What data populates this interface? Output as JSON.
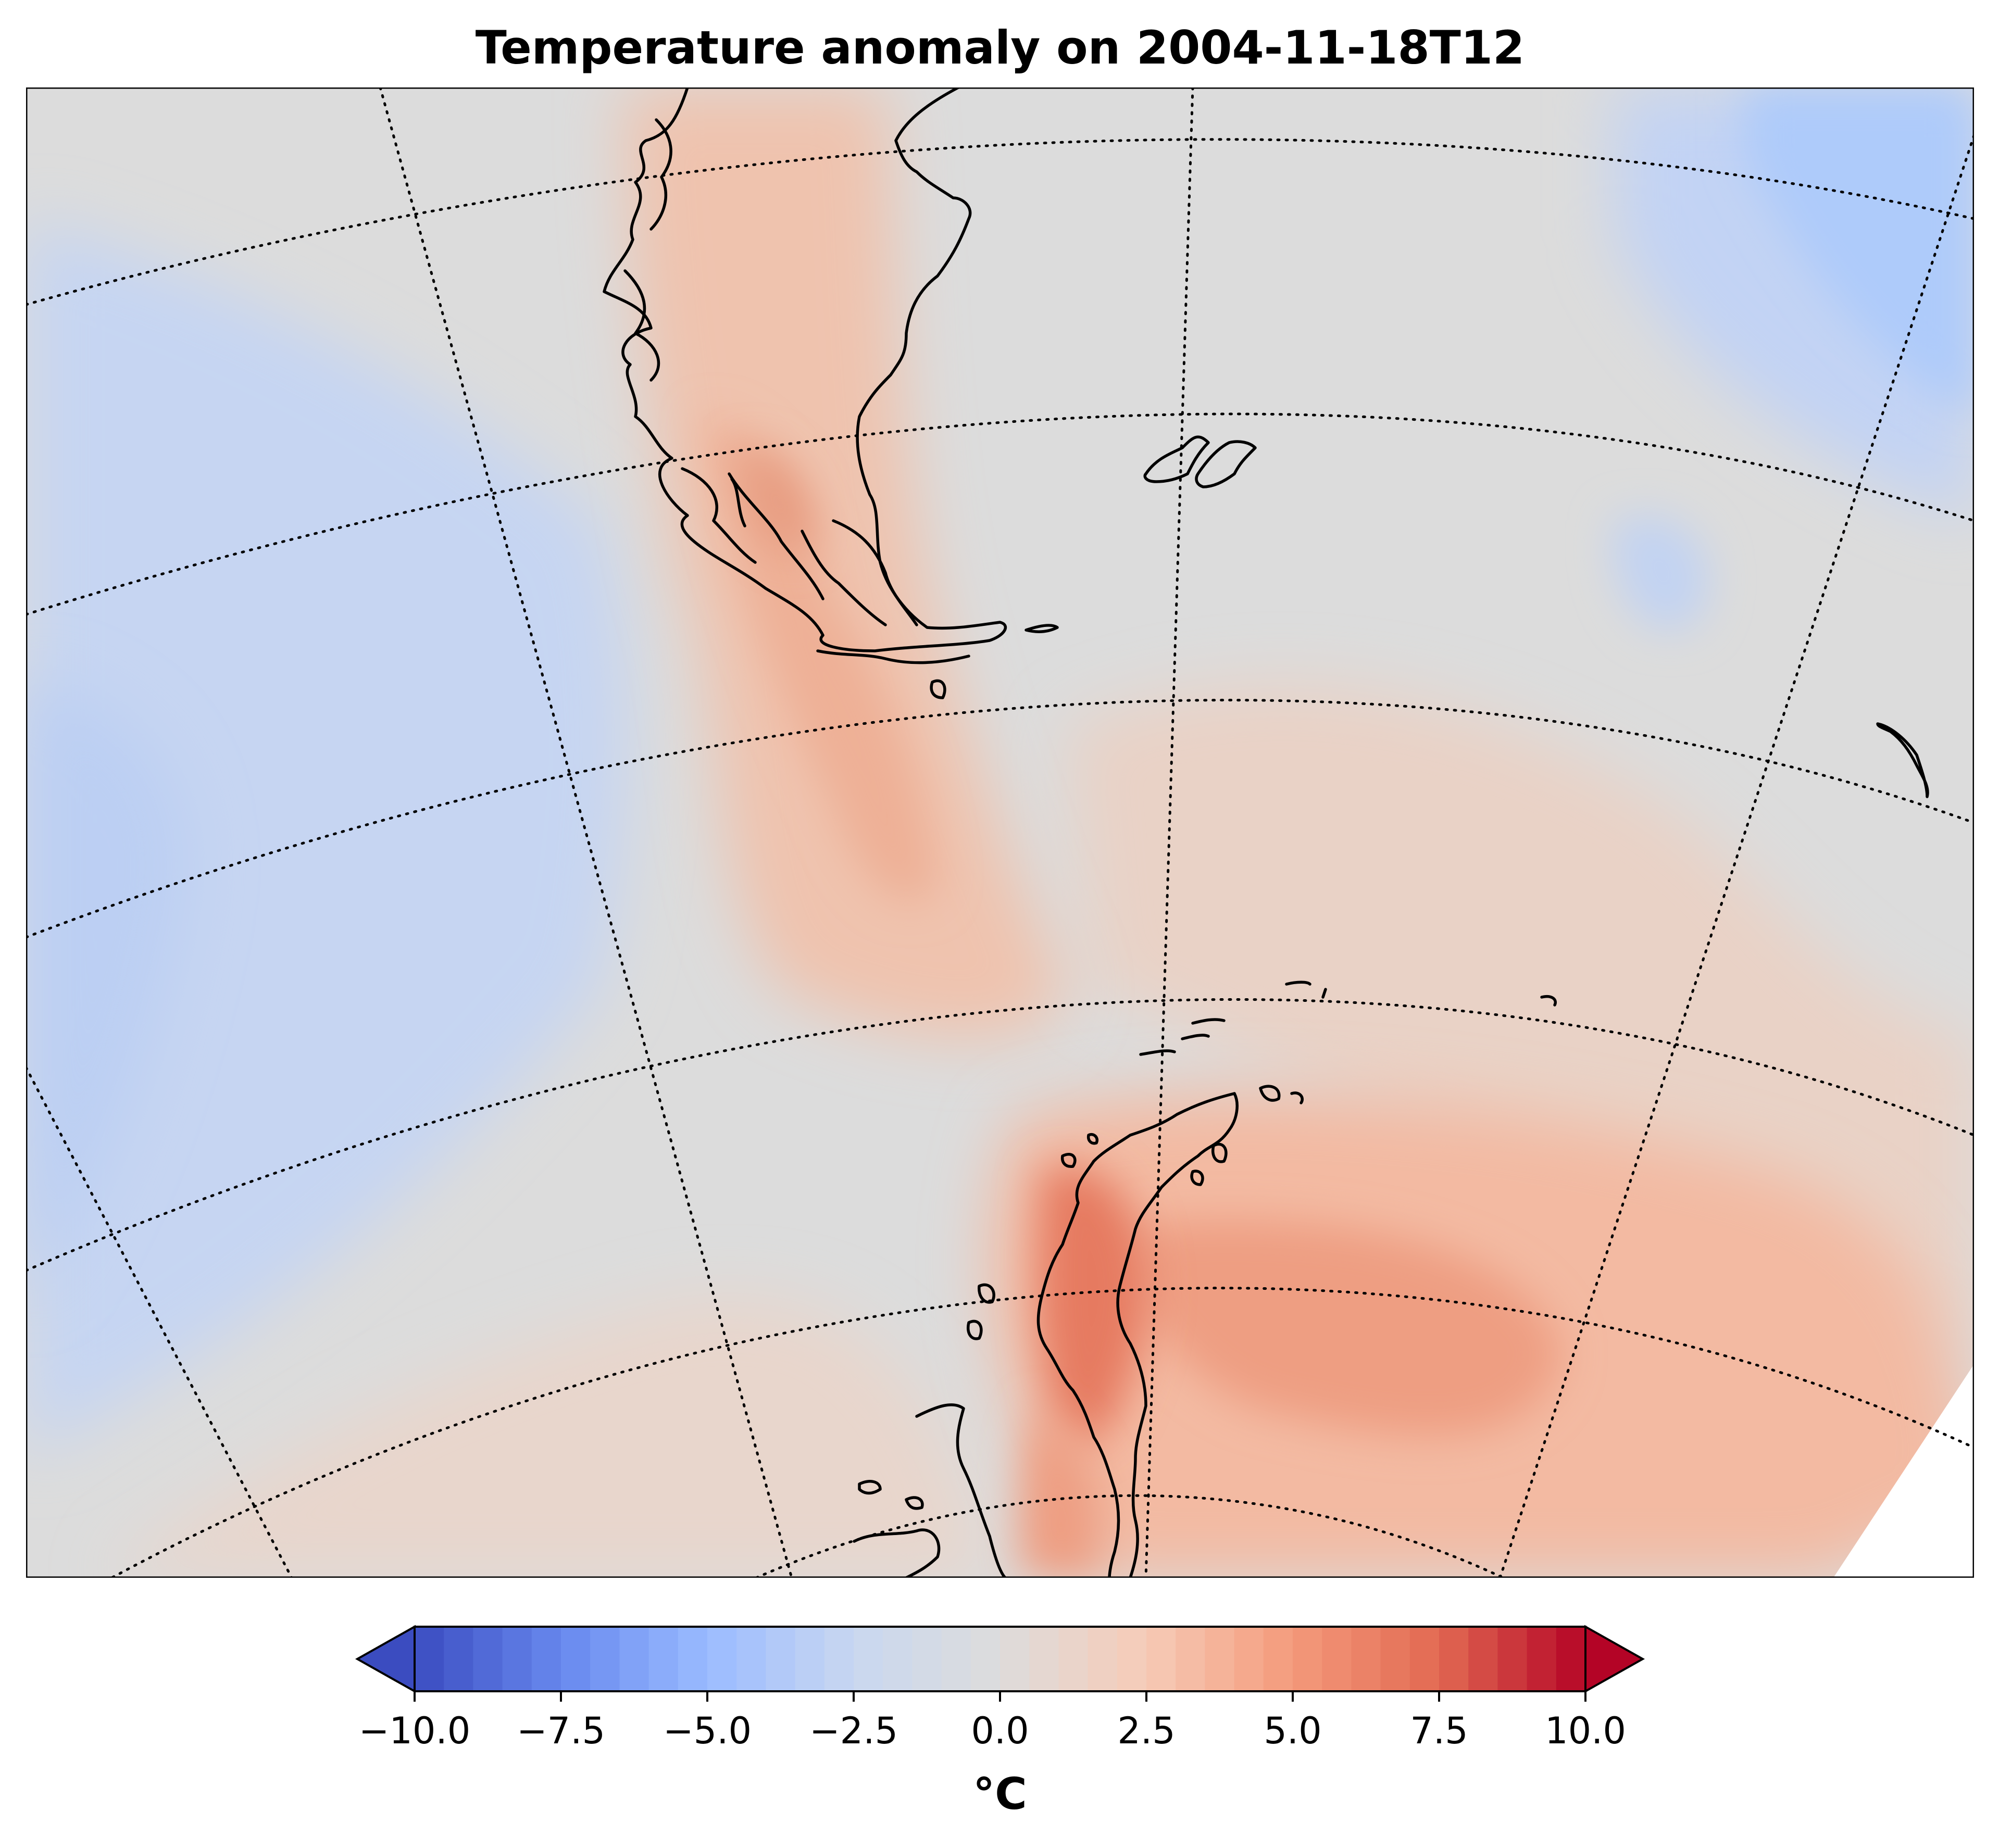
{
  "title": "Temperature anomaly on 2004-11-18T12",
  "colorbar": {
    "label": "°C",
    "colormap": "coolwarm",
    "vmin": -10,
    "vmax": 10,
    "levels": 41,
    "extend": "both",
    "ticks": [
      "−10.0",
      "−7.5",
      "−5.0",
      "−2.5",
      "0.0",
      "2.5",
      "5.0",
      "7.5",
      "10.0"
    ],
    "stops": [
      "#3b4cc0",
      "#6788ee",
      "#9abbff",
      "#c9d7f0",
      "#dddcdc",
      "#f6cbb7",
      "#f49a7b",
      "#e26952",
      "#b40426"
    ]
  },
  "map": {
    "projection": "conic",
    "graticule": "dotted",
    "coastlines": "black",
    "features": [
      "Patagonia",
      "Tierra del Fuego",
      "Falkland Islands",
      "South Georgia",
      "South Shetland Islands",
      "Antarctic Peninsula"
    ],
    "anomaly_regions": [
      {
        "region": "Antarctic Peninsula east side",
        "anomaly": 6
      },
      {
        "region": "Weddell Sea",
        "anomaly": 5
      },
      {
        "region": "Tierra del Fuego / Drake Passage",
        "anomaly": 3.5
      },
      {
        "region": "Southern Patagonia",
        "anomaly": 4
      },
      {
        "region": "South Pacific west",
        "anomaly": -2
      },
      {
        "region": "South Atlantic northeast",
        "anomaly": -3
      },
      {
        "region": "Central Scotia Sea",
        "anomaly": 1
      }
    ]
  }
}
